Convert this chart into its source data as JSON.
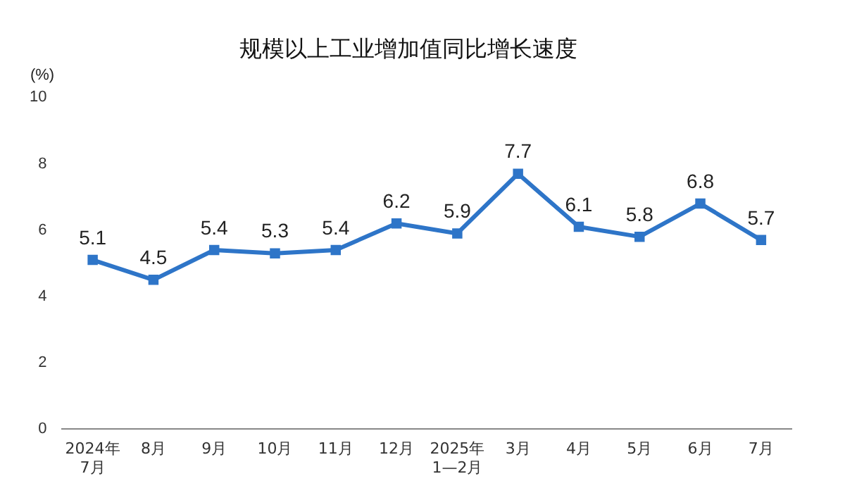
{
  "chart_data": {
    "type": "line",
    "title": "规模以上工业增加值同比增长速度",
    "ylabel": "(%)",
    "categories": [
      "2024年\n7月",
      "8月",
      "9月",
      "10月",
      "11月",
      "12月",
      "2025年\n1—2月",
      "3月",
      "4月",
      "5月",
      "6月",
      "7月"
    ],
    "series": [
      {
        "color": "#2e75c8",
        "values": [
          5.1,
          4.5,
          5.4,
          5.3,
          5.4,
          6.2,
          5.9,
          7.7,
          6.1,
          5.8,
          6.8,
          5.7
        ]
      }
    ],
    "ylim": [
      0,
      10
    ],
    "yticks": [
      0,
      2,
      4,
      6,
      8,
      10
    ],
    "grid": false,
    "legend": false,
    "marker": "square",
    "line_style": "solid",
    "data_labels": true
  }
}
